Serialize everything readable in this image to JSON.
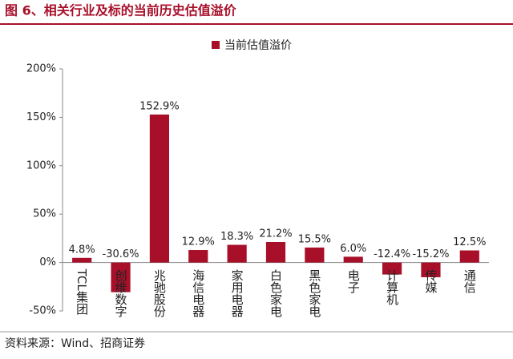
{
  "chart_data": {
    "type": "bar",
    "title": "图 6、相关行业及标的当前历史估值溢价",
    "source": "资料来源：Wind、招商证券",
    "categories": [
      "TCL集团",
      "创维数字",
      "兆驰股份",
      "海信电器",
      "家用电器",
      "白色家电",
      "黑色家电",
      "电子",
      "计算机",
      "传媒",
      "通信"
    ],
    "series": [
      {
        "name": "当前估值溢价",
        "color": "#a8102a",
        "values": [
          4.8,
          -30.6,
          152.9,
          12.9,
          18.3,
          21.2,
          15.5,
          6.0,
          -12.4,
          -15.2,
          12.5
        ],
        "value_labels": [
          "4.8%",
          "-30.6%",
          "152.9%",
          "12.9%",
          "18.3%",
          "21.2%",
          "15.5%",
          "6.0%",
          "-12.4%",
          "-15.2%",
          "12.5%"
        ]
      }
    ],
    "ylim": [
      -50,
      200
    ],
    "yticks": [
      {
        "value": -50,
        "label": "-50%"
      },
      {
        "value": 0,
        "label": "0%"
      },
      {
        "value": 50,
        "label": "50%"
      },
      {
        "value": 100,
        "label": "100%"
      },
      {
        "value": 150,
        "label": "150%"
      },
      {
        "value": 200,
        "label": "200%"
      }
    ],
    "grid": false
  }
}
